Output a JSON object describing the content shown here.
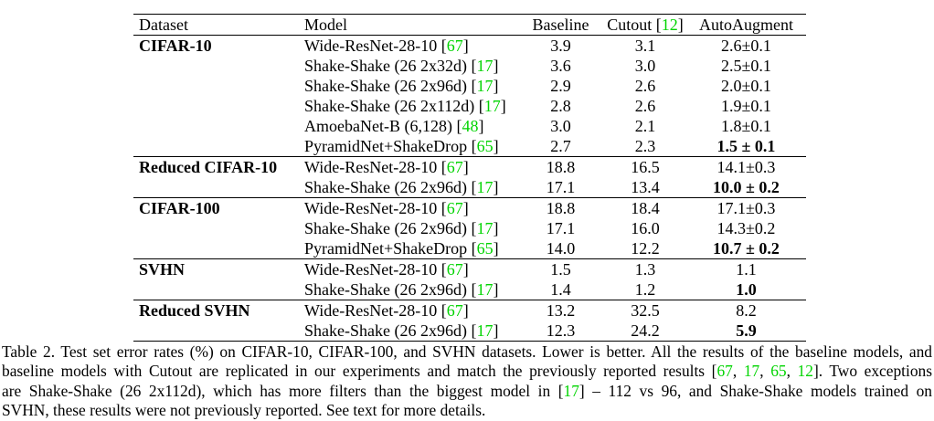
{
  "accent_colors": {
    "citation_green": "#00d400",
    "text": "#000000",
    "background": "#ffffff"
  },
  "table": {
    "headers": {
      "dataset": "Dataset",
      "model": "Model",
      "baseline": "Baseline",
      "cutout_prefix": "Cutout [",
      "cutout_cite": "12",
      "cutout_suffix": "]",
      "autoaugment": "AutoAugment"
    },
    "sections": [
      {
        "rows": [
          {
            "dataset": "CIFAR-10",
            "model": "Wide-ResNet-28-10 [",
            "cite": "67",
            "cite_close": "]",
            "baseline": "3.9",
            "cutout": "3.1",
            "autoaugment": "2.6±0.1"
          },
          {
            "dataset": "",
            "model": "Shake-Shake (26 2x32d) [",
            "cite": "17",
            "cite_close": "]",
            "baseline": "3.6",
            "cutout": "3.0",
            "autoaugment": "2.5±0.1"
          },
          {
            "dataset": "",
            "model": "Shake-Shake (26 2x96d) [",
            "cite": "17",
            "cite_close": "]",
            "baseline": "2.9",
            "cutout": "2.6",
            "autoaugment": "2.0±0.1"
          },
          {
            "dataset": "",
            "model": "Shake-Shake (26 2x112d) [",
            "cite": "17",
            "cite_close": "]",
            "baseline": "2.8",
            "cutout": "2.6",
            "autoaugment": "1.9±0.1"
          },
          {
            "dataset": "",
            "model": "AmoebaNet-B (6,128) [",
            "cite": "48",
            "cite_close": "]",
            "baseline": "3.0",
            "cutout": "2.1",
            "autoaugment": "1.8±0.1"
          },
          {
            "dataset": "",
            "model": "PyramidNet+ShakeDrop [",
            "cite": "65",
            "cite_close": "]",
            "baseline": "2.7",
            "cutout": "2.3",
            "autoaugment": "1.5 ± 0.1"
          }
        ]
      },
      {
        "rows": [
          {
            "dataset": "Reduced CIFAR-10",
            "model": "Wide-ResNet-28-10 [",
            "cite": "67",
            "cite_close": "]",
            "baseline": "18.8",
            "cutout": "16.5",
            "autoaugment": "14.1±0.3"
          },
          {
            "dataset": "",
            "model": "Shake-Shake (26 2x96d) [",
            "cite": "17",
            "cite_close": "]",
            "baseline": "17.1",
            "cutout": "13.4",
            "autoaugment": "10.0 ± 0.2"
          }
        ]
      },
      {
        "rows": [
          {
            "dataset": "CIFAR-100",
            "model": "Wide-ResNet-28-10 [",
            "cite": "67",
            "cite_close": "]",
            "baseline": "18.8",
            "cutout": "18.4",
            "autoaugment": "17.1±0.3"
          },
          {
            "dataset": "",
            "model": "Shake-Shake (26 2x96d) [",
            "cite": "17",
            "cite_close": "]",
            "baseline": "17.1",
            "cutout": "16.0",
            "autoaugment": "14.3±0.2"
          },
          {
            "dataset": "",
            "model": "PyramidNet+ShakeDrop [",
            "cite": "65",
            "cite_close": "]",
            "baseline": "14.0",
            "cutout": "12.2",
            "autoaugment": "10.7 ± 0.2"
          }
        ]
      },
      {
        "rows": [
          {
            "dataset": "SVHN",
            "model": "Wide-ResNet-28-10 [",
            "cite": "67",
            "cite_close": "]",
            "baseline": "1.5",
            "cutout": "1.3",
            "autoaugment": "1.1"
          },
          {
            "dataset": "",
            "model": "Shake-Shake (26 2x96d) [",
            "cite": "17",
            "cite_close": "]",
            "baseline": "1.4",
            "cutout": "1.2",
            "autoaugment": "1.0"
          }
        ]
      },
      {
        "rows": [
          {
            "dataset": "Reduced SVHN",
            "model": "Wide-ResNet-28-10 [",
            "cite": "67",
            "cite_close": "]",
            "baseline": "13.2",
            "cutout": "32.5",
            "autoaugment": "8.2"
          },
          {
            "dataset": "",
            "model": "Shake-Shake (26 2x96d) [",
            "cite": "17",
            "cite_close": "]",
            "baseline": "12.3",
            "cutout": "24.2",
            "autoaugment": "5.9"
          }
        ]
      }
    ]
  },
  "caption": {
    "line1": "Table 2. Test set error rates (%) on CIFAR-10, CIFAR-100, and SVHN datasets. Lower is better. All the results of the baseline models, and",
    "line2_parts": [
      {
        "t": "baseline models with Cutout are replicated in our experiments and match the previously reported results ["
      },
      {
        "t": "67",
        "cite": true
      },
      {
        "t": ", "
      },
      {
        "t": "17",
        "cite": true
      },
      {
        "t": ", "
      },
      {
        "t": "65",
        "cite": true
      },
      {
        "t": ", "
      },
      {
        "t": "12",
        "cite": true
      },
      {
        "t": "]. Two exceptions"
      }
    ],
    "line3_parts": [
      {
        "t": "are Shake-Shake (26 2x112d), which has more filters than the biggest model in ["
      },
      {
        "t": "17",
        "cite": true
      },
      {
        "t": "] – 112 vs 96, and Shake-Shake models trained on"
      }
    ],
    "line4": "SVHN, these results were not previously reported. See text for more details."
  }
}
